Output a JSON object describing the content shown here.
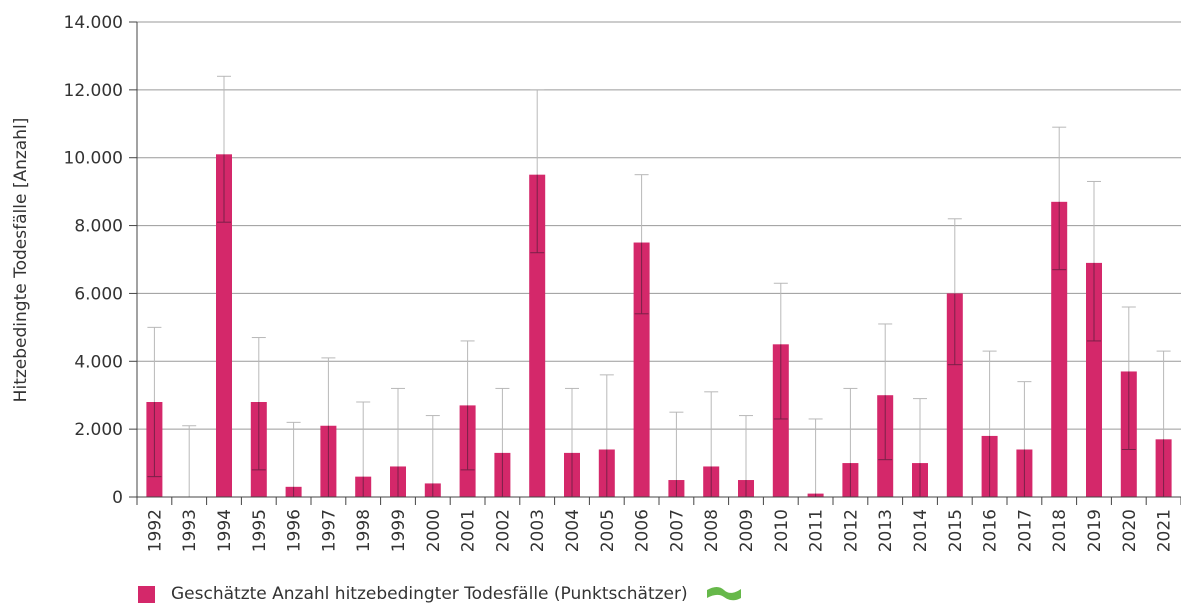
{
  "chart_data": {
    "type": "bar",
    "ylabel": "Hitzebedingte Todesfälle [Anzahl]",
    "ylim": [
      0,
      14000
    ],
    "yticks": [
      0,
      2000,
      4000,
      6000,
      8000,
      10000,
      12000,
      14000
    ],
    "ytick_labels": [
      "0",
      "2.000",
      "4.000",
      "6.000",
      "8.000",
      "10.000",
      "12.000",
      "14.000"
    ],
    "grid": true,
    "legend_position": "bottom-left",
    "categories": [
      "1992",
      "1993",
      "1994",
      "1995",
      "1996",
      "1997",
      "1998",
      "1999",
      "2000",
      "2001",
      "2002",
      "2003",
      "2004",
      "2005",
      "2006",
      "2007",
      "2008",
      "2009",
      "2010",
      "2011",
      "2012",
      "2013",
      "2014",
      "2015",
      "2016",
      "2017",
      "2018",
      "2019",
      "2020",
      "2021"
    ],
    "series": [
      {
        "name": "Geschätzte Anzahl hitzebedingter Todesfälle (Punktschätzer)",
        "color": "#d4286a",
        "values": [
          2800,
          0,
          10100,
          2800,
          300,
          2100,
          600,
          900,
          400,
          2700,
          1300,
          9500,
          1300,
          1400,
          7500,
          500,
          900,
          500,
          4500,
          100,
          1000,
          3000,
          1000,
          6000,
          1800,
          1400,
          8700,
          6900,
          3700,
          1700
        ],
        "ci_lower": [
          600,
          0,
          8100,
          800,
          0,
          0,
          0,
          0,
          0,
          800,
          0,
          7200,
          0,
          0,
          5400,
          0,
          0,
          0,
          2300,
          0,
          0,
          1100,
          0,
          3900,
          0,
          0,
          6700,
          4600,
          1400,
          0
        ],
        "ci_upper": [
          5000,
          2100,
          12400,
          4700,
          2200,
          4100,
          2800,
          3200,
          2400,
          4600,
          3200,
          12000,
          3200,
          3600,
          9500,
          2500,
          3100,
          2400,
          6300,
          2300,
          3200,
          5100,
          2900,
          8200,
          4300,
          3400,
          10900,
          9300,
          5600,
          4300
        ]
      }
    ]
  },
  "legend": {
    "label": "Geschätzte Anzahl hitzebedingter Todesfälle (Punktschätzer)",
    "swatch_color": "#d4286a",
    "trend_icon": "green-wave-icon",
    "trend_color": "#66b84a"
  }
}
